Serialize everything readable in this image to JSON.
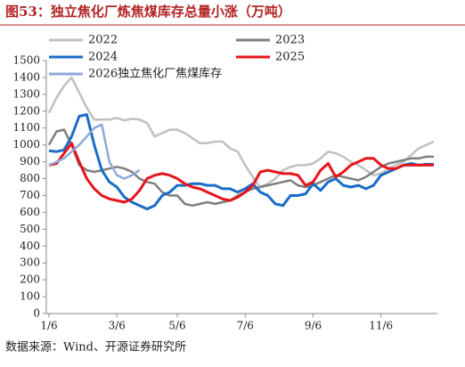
{
  "chart_data": {
    "type": "line",
    "title": "图53：独立焦化厂炼焦煤库存总量小涨（万吨）",
    "source": "数据来源：Wind、开源证券研究所",
    "categories": [
      "1/6",
      null,
      null,
      null,
      null,
      null,
      null,
      null,
      null,
      "3/6",
      null,
      null,
      null,
      null,
      null,
      null,
      null,
      "5/6",
      null,
      null,
      null,
      null,
      null,
      null,
      null,
      null,
      "7/6",
      null,
      null,
      null,
      null,
      null,
      null,
      null,
      null,
      "9/6",
      null,
      null,
      null,
      null,
      null,
      null,
      null,
      null,
      "11/6",
      null,
      null,
      null,
      null,
      null,
      null,
      null
    ],
    "ylim": [
      0,
      1500
    ],
    "yticks": [
      0,
      100,
      200,
      300,
      400,
      500,
      600,
      700,
      800,
      900,
      1000,
      1100,
      1200,
      1300,
      1400,
      1500
    ],
    "series": [
      {
        "name": "2022",
        "color": "#c0c0c0",
        "values": [
          1190,
          1280,
          1350,
          1400,
          1310,
          1220,
          1150,
          1150,
          1150,
          1160,
          1145,
          1155,
          1150,
          1130,
          1050,
          1070,
          1090,
          1090,
          1070,
          1040,
          1010,
          1010,
          1020,
          1020,
          980,
          960,
          880,
          810,
          750,
          770,
          800,
          850,
          870,
          880,
          880,
          890,
          920,
          960,
          950,
          930,
          900,
          880,
          850,
          820,
          830,
          860,
          880,
          900,
          940,
          980,
          1000,
          1020
        ]
      },
      {
        "name": "2023",
        "color": "#7f7f7f",
        "values": [
          1000,
          1080,
          1090,
          1000,
          880,
          850,
          840,
          850,
          860,
          870,
          860,
          840,
          800,
          780,
          770,
          720,
          700,
          700,
          650,
          640,
          650,
          660,
          650,
          660,
          670,
          700,
          720,
          740,
          750,
          760,
          770,
          780,
          790,
          760,
          750,
          760,
          780,
          800,
          820,
          810,
          800,
          790,
          810,
          840,
          870,
          890,
          900,
          910,
          920,
          920,
          930,
          930
        ]
      },
      {
        "name": "2024",
        "color": "#1a6cc8",
        "values": [
          965,
          960,
          970,
          1050,
          1170,
          1180,
          1000,
          850,
          780,
          750,
          690,
          660,
          640,
          620,
          640,
          700,
          720,
          760,
          760,
          770,
          770,
          760,
          760,
          740,
          740,
          720,
          740,
          770,
          720,
          700,
          650,
          640,
          700,
          700,
          710,
          770,
          730,
          780,
          800,
          760,
          750,
          760,
          740,
          760,
          820,
          840,
          860,
          880,
          890,
          880,
          885,
          885
        ]
      },
      {
        "name": "2025",
        "color": "#e8141c",
        "values": [
          880,
          890,
          950,
          1010,
          900,
          800,
          740,
          700,
          680,
          670,
          660,
          680,
          730,
          800,
          820,
          830,
          820,
          800,
          770,
          750,
          740,
          720,
          700,
          680,
          670,
          690,
          720,
          760,
          840,
          850,
          840,
          830,
          830,
          820,
          760,
          780,
          850,
          890,
          810,
          840,
          880,
          900,
          920,
          920,
          880,
          860,
          860,
          880,
          880,
          880,
          880,
          880
        ]
      },
      {
        "name": "2026独立焦化厂焦煤库存",
        "color": "#8eaadb",
        "values": [
          880,
          900,
          920,
          960,
          1000,
          1050,
          1100,
          1120,
          900,
          820,
          800,
          820,
          850,
          null,
          null,
          null,
          null,
          null,
          null,
          null,
          null,
          null,
          null,
          null,
          null,
          null,
          null,
          null,
          null,
          null,
          null,
          null,
          null,
          null,
          null,
          null,
          null,
          null,
          null,
          null,
          null,
          null,
          null,
          null,
          null,
          null,
          null,
          null,
          null,
          null,
          null,
          null
        ]
      }
    ]
  }
}
